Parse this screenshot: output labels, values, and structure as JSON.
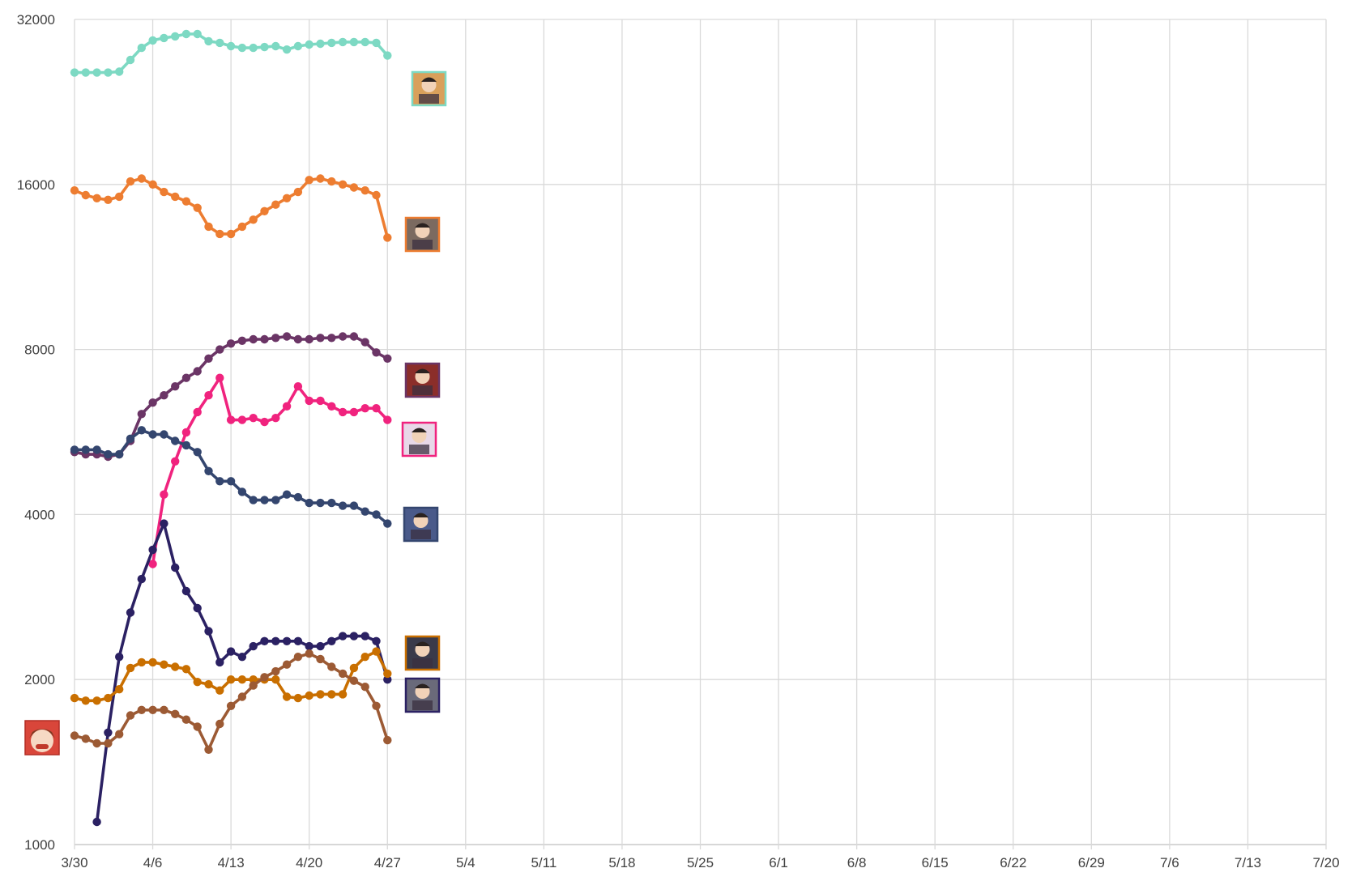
{
  "chart_data": {
    "type": "line",
    "title": "",
    "xlabel": "",
    "ylabel": "",
    "yscale": "log2",
    "ylim": [
      1000,
      32000
    ],
    "y_ticks": [
      "1000",
      "2000",
      "4000",
      "8000",
      "16000",
      "32000"
    ],
    "y_tick_values": [
      1000,
      2000,
      4000,
      8000,
      16000,
      32000
    ],
    "x_ticks": [
      "3/30",
      "4/6",
      "4/13",
      "4/20",
      "4/27",
      "5/4",
      "5/11",
      "5/18",
      "5/25",
      "6/1",
      "6/8",
      "6/15",
      "6/22",
      "6/29",
      "7/6",
      "7/13",
      "7/20"
    ],
    "x_start": "3/30",
    "x_end": "7/20",
    "grid": true,
    "legend": "portrait icons at right end of each line",
    "series": [
      {
        "color": "#7dd9c3",
        "icon": "character-portrait-1-icon",
        "x": [
          "3/30",
          "3/31",
          "4/1",
          "4/2",
          "4/3",
          "4/4",
          "4/5",
          "4/6",
          "4/7",
          "4/8",
          "4/9",
          "4/10",
          "4/11",
          "4/12",
          "4/13",
          "4/14",
          "4/15",
          "4/16",
          "4/17",
          "4/18",
          "4/19",
          "4/20",
          "4/21",
          "4/22",
          "4/23",
          "4/24",
          "4/25",
          "4/26",
          "4/27"
        ],
        "values": [
          25600,
          25600,
          25600,
          25600,
          25700,
          27000,
          28400,
          29300,
          29600,
          29800,
          30100,
          30100,
          29200,
          29000,
          28600,
          28400,
          28400,
          28500,
          28600,
          28200,
          28600,
          28800,
          28900,
          29000,
          29100,
          29100,
          29100,
          29000,
          27500
        ]
      },
      {
        "color": "#ed7d31",
        "icon": "character-portrait-2-icon",
        "x": [
          "3/30",
          "3/31",
          "4/1",
          "4/2",
          "4/3",
          "4/4",
          "4/5",
          "4/6",
          "4/7",
          "4/8",
          "4/9",
          "4/10",
          "4/11",
          "4/12",
          "4/13",
          "4/14",
          "4/15",
          "4/16",
          "4/17",
          "4/18",
          "4/19",
          "4/20",
          "4/21",
          "4/22",
          "4/23",
          "4/24",
          "4/25",
          "4/26",
          "4/27"
        ],
        "values": [
          15600,
          15300,
          15100,
          15000,
          15200,
          16200,
          16400,
          16000,
          15500,
          15200,
          14900,
          14500,
          13400,
          13000,
          13000,
          13400,
          13800,
          14300,
          14700,
          15100,
          15500,
          16300,
          16400,
          16200,
          16000,
          15800,
          15600,
          15300,
          12800
        ]
      },
      {
        "color": "#6b3566",
        "icon": "character-portrait-3-icon",
        "x": [
          "3/30",
          "3/31",
          "4/1",
          "4/2",
          "4/3",
          "4/4",
          "4/5",
          "4/6",
          "4/7",
          "4/8",
          "4/9",
          "4/10",
          "4/11",
          "4/12",
          "4/13",
          "4/14",
          "4/15",
          "4/16",
          "4/17",
          "4/18",
          "4/19",
          "4/20",
          "4/21",
          "4/22",
          "4/23",
          "4/24",
          "4/25",
          "4/26",
          "4/27"
        ],
        "values": [
          5200,
          5150,
          5150,
          5100,
          5150,
          5450,
          6100,
          6400,
          6600,
          6850,
          7100,
          7300,
          7700,
          8000,
          8200,
          8300,
          8350,
          8350,
          8400,
          8450,
          8350,
          8350,
          8400,
          8400,
          8450,
          8450,
          8250,
          7900,
          7700
        ]
      },
      {
        "color": "#f0237e",
        "icon": "character-portrait-4-icon",
        "x": [
          "4/6",
          "4/7",
          "4/8",
          "4/9",
          "4/10",
          "4/11",
          "4/12",
          "4/13",
          "4/14",
          "4/15",
          "4/16",
          "4/17",
          "4/18",
          "4/19",
          "4/20",
          "4/21",
          "4/22",
          "4/23",
          "4/24",
          "4/25",
          "4/26",
          "4/27"
        ],
        "values": [
          3250,
          4350,
          5000,
          5650,
          6150,
          6600,
          7100,
          5950,
          5950,
          6000,
          5900,
          6000,
          6300,
          6850,
          6450,
          6450,
          6300,
          6150,
          6150,
          6250,
          6250,
          5950
        ]
      },
      {
        "color": "#34466f",
        "icon": "character-portrait-5-icon",
        "x": [
          "3/30",
          "3/31",
          "4/1",
          "4/2",
          "4/3",
          "4/4",
          "4/5",
          "4/6",
          "4/7",
          "4/8",
          "4/9",
          "4/10",
          "4/11",
          "4/12",
          "4/13",
          "4/14",
          "4/15",
          "4/16",
          "4/17",
          "4/18",
          "4/19",
          "4/20",
          "4/21",
          "4/22",
          "4/23",
          "4/24",
          "4/25",
          "4/26",
          "4/27"
        ],
        "values": [
          5250,
          5250,
          5250,
          5150,
          5150,
          5500,
          5700,
          5600,
          5600,
          5450,
          5350,
          5200,
          4800,
          4600,
          4600,
          4400,
          4250,
          4250,
          4250,
          4350,
          4300,
          4200,
          4200,
          4200,
          4150,
          4150,
          4050,
          4000,
          3850
        ]
      },
      {
        "color": "#2b2163",
        "icon": "character-portrait-6-icon",
        "x": [
          "4/1",
          "4/2",
          "4/3",
          "4/4",
          "4/5",
          "4/6",
          "4/7",
          "4/8",
          "4/9",
          "4/10",
          "4/11",
          "4/12",
          "4/13",
          "4/14",
          "4/15",
          "4/16",
          "4/17",
          "4/18",
          "4/19",
          "4/20",
          "4/21",
          "4/22",
          "4/23",
          "4/24",
          "4/25",
          "4/26",
          "4/27"
        ],
        "values": [
          1100,
          1600,
          2200,
          2650,
          3050,
          3450,
          3850,
          3200,
          2900,
          2700,
          2450,
          2150,
          2250,
          2200,
          2300,
          2350,
          2350,
          2350,
          2350,
          2300,
          2300,
          2350,
          2400,
          2400,
          2400,
          2350,
          2000
        ]
      },
      {
        "color": "#c96f00",
        "icon": "character-portrait-7-icon",
        "x": [
          "3/30",
          "3/31",
          "4/1",
          "4/2",
          "4/3",
          "4/4",
          "4/5",
          "4/6",
          "4/7",
          "4/8",
          "4/9",
          "4/10",
          "4/11",
          "4/12",
          "4/13",
          "4/14",
          "4/15",
          "4/16",
          "4/17",
          "4/18",
          "4/19",
          "4/20",
          "4/21",
          "4/22",
          "4/23",
          "4/24",
          "4/25",
          "4/26",
          "4/27"
        ],
        "values": [
          1850,
          1830,
          1830,
          1850,
          1920,
          2100,
          2150,
          2150,
          2130,
          2110,
          2090,
          1980,
          1960,
          1910,
          2000,
          2000,
          2000,
          2000,
          2000,
          1860,
          1850,
          1870,
          1880,
          1880,
          1880,
          2100,
          2200,
          2250,
          2050
        ]
      },
      {
        "color": "#9c5a34",
        "icon": "character-portrait-8-icon",
        "x": [
          "3/30",
          "3/31",
          "4/1",
          "4/2",
          "4/3",
          "4/4",
          "4/5",
          "4/6",
          "4/7",
          "4/8",
          "4/9",
          "4/10",
          "4/11",
          "4/12",
          "4/13",
          "4/14",
          "4/15",
          "4/16",
          "4/17",
          "4/18",
          "4/19",
          "4/20",
          "4/21",
          "4/22",
          "4/23",
          "4/24",
          "4/25",
          "4/26",
          "4/27"
        ],
        "values": [
          1580,
          1560,
          1530,
          1530,
          1590,
          1720,
          1760,
          1760,
          1760,
          1730,
          1690,
          1640,
          1490,
          1660,
          1790,
          1860,
          1950,
          2020,
          2070,
          2130,
          2200,
          2230,
          2180,
          2110,
          2050,
          1990,
          1940,
          1790,
          1550
        ]
      }
    ],
    "extra_icons": [
      "mascot-angry-face-icon"
    ]
  }
}
